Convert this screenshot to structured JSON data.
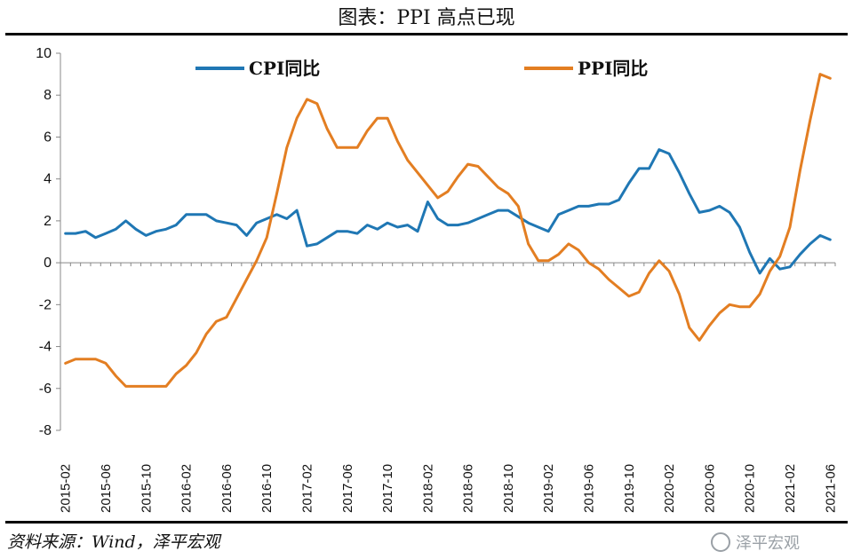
{
  "header": {
    "title": "图表：PPI 高点已现"
  },
  "footer": {
    "source": "资料来源：Wind，泽平宏观",
    "watermark": "泽平宏观"
  },
  "colors": {
    "cpi": "#1f77b4",
    "ppi": "#e37e22",
    "axis": "#888888"
  },
  "chart_data": {
    "type": "line",
    "title": "图表：PPI 高点已现",
    "xlabel": "",
    "ylabel": "",
    "ylim": [
      -8,
      10
    ],
    "yticks": [
      -8,
      -6,
      -4,
      -2,
      0,
      2,
      4,
      6,
      8,
      10
    ],
    "grid": false,
    "legend_position": "top",
    "x": [
      "2015-02",
      "2015-03",
      "2015-04",
      "2015-05",
      "2015-06",
      "2015-07",
      "2015-08",
      "2015-09",
      "2015-10",
      "2015-11",
      "2015-12",
      "2016-01",
      "2016-02",
      "2016-03",
      "2016-04",
      "2016-05",
      "2016-06",
      "2016-07",
      "2016-08",
      "2016-09",
      "2016-10",
      "2016-11",
      "2016-12",
      "2017-01",
      "2017-02",
      "2017-03",
      "2017-04",
      "2017-05",
      "2017-06",
      "2017-07",
      "2017-08",
      "2017-09",
      "2017-10",
      "2017-11",
      "2017-12",
      "2018-01",
      "2018-02",
      "2018-03",
      "2018-04",
      "2018-05",
      "2018-06",
      "2018-07",
      "2018-08",
      "2018-09",
      "2018-10",
      "2018-11",
      "2018-12",
      "2019-01",
      "2019-02",
      "2019-03",
      "2019-04",
      "2019-05",
      "2019-06",
      "2019-07",
      "2019-08",
      "2019-09",
      "2019-10",
      "2019-11",
      "2019-12",
      "2020-01",
      "2020-02",
      "2020-03",
      "2020-04",
      "2020-05",
      "2020-06",
      "2020-07",
      "2020-08",
      "2020-09",
      "2020-10",
      "2020-11",
      "2020-12",
      "2021-01",
      "2021-02",
      "2021-03",
      "2021-04",
      "2021-05",
      "2021-06"
    ],
    "xtick_labels": [
      "2015-02",
      "2015-06",
      "2015-10",
      "2016-02",
      "2016-06",
      "2016-10",
      "2017-02",
      "2017-06",
      "2017-10",
      "2018-02",
      "2018-06",
      "2018-10",
      "2019-02",
      "2019-06",
      "2019-10",
      "2020-02",
      "2020-06",
      "2020-10",
      "2021-02",
      "2021-06"
    ],
    "series": [
      {
        "name": "CPI同比",
        "values": [
          1.4,
          1.4,
          1.5,
          1.2,
          1.4,
          1.6,
          2.0,
          1.6,
          1.3,
          1.5,
          1.6,
          1.8,
          2.3,
          2.3,
          2.3,
          2.0,
          1.9,
          1.8,
          1.3,
          1.9,
          2.1,
          2.3,
          2.1,
          2.5,
          0.8,
          0.9,
          1.2,
          1.5,
          1.5,
          1.4,
          1.8,
          1.6,
          1.9,
          1.7,
          1.8,
          1.5,
          2.9,
          2.1,
          1.8,
          1.8,
          1.9,
          2.1,
          2.3,
          2.5,
          2.5,
          2.2,
          1.9,
          1.7,
          1.5,
          2.3,
          2.5,
          2.7,
          2.7,
          2.8,
          2.8,
          3.0,
          3.8,
          4.5,
          4.5,
          5.4,
          5.2,
          4.3,
          3.3,
          2.4,
          2.5,
          2.7,
          2.4,
          1.7,
          0.5,
          -0.5,
          0.2,
          -0.3,
          -0.2,
          0.4,
          0.9,
          1.3,
          1.1
        ]
      },
      {
        "name": "PPI同比",
        "values": [
          -4.8,
          -4.6,
          -4.6,
          -4.6,
          -4.8,
          -5.4,
          -5.9,
          -5.9,
          -5.9,
          -5.9,
          -5.9,
          -5.3,
          -4.9,
          -4.3,
          -3.4,
          -2.8,
          -2.6,
          -1.7,
          -0.8,
          0.1,
          1.2,
          3.3,
          5.5,
          6.9,
          7.8,
          7.6,
          6.4,
          5.5,
          5.5,
          5.5,
          6.3,
          6.9,
          6.9,
          5.8,
          4.9,
          4.3,
          3.7,
          3.1,
          3.4,
          4.1,
          4.7,
          4.6,
          4.1,
          3.6,
          3.3,
          2.7,
          0.9,
          0.1,
          0.1,
          0.4,
          0.9,
          0.6,
          0.0,
          -0.3,
          -0.8,
          -1.2,
          -1.6,
          -1.4,
          -0.5,
          0.1,
          -0.4,
          -1.5,
          -3.1,
          -3.7,
          -3.0,
          -2.4,
          -2.0,
          -2.1,
          -2.1,
          -1.5,
          -0.4,
          0.3,
          1.7,
          4.4,
          6.8,
          9.0,
          8.8
        ]
      }
    ]
  }
}
